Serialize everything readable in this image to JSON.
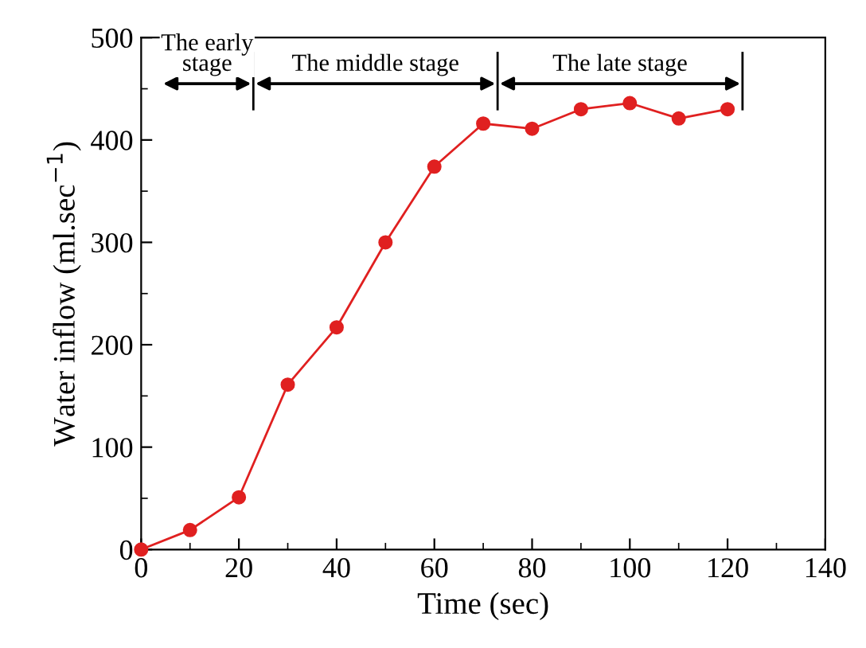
{
  "chart_data": {
    "type": "line",
    "xlabel": "Time (sec)",
    "ylabel": "Water inflow (ml.sec$^{−1}$)",
    "x": [
      0,
      10,
      20,
      30,
      40,
      50,
      60,
      70,
      80,
      90,
      100,
      110,
      120
    ],
    "series": [
      {
        "color": "#e02020",
        "values": [
          0,
          19,
          51,
          161,
          217,
          300,
          374,
          416,
          411,
          430,
          436,
          421,
          430
        ]
      }
    ],
    "xlim": [
      0,
      140
    ],
    "xticks": [
      0,
      20,
      40,
      60,
      80,
      100,
      120,
      140
    ],
    "ylim": [
      0,
      500
    ],
    "yticks": [
      0,
      100,
      200,
      300,
      400,
      500
    ],
    "marker": "circle",
    "line_style": "solid",
    "grid": false,
    "legend": false,
    "annotations": [
      "The early\nstage",
      "The middle stage",
      "The late stage"
    ]
  }
}
